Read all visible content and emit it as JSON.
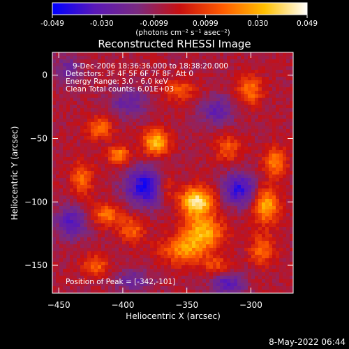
{
  "colorbar": {
    "ticks": [
      "-0.049",
      "-0.030",
      "-0.0099",
      "0.0099",
      "0.030",
      "0.049"
    ],
    "min": -0.049,
    "max": 0.049,
    "units": "(photons cm⁻² s⁻¹ asec⁻²)"
  },
  "chart_data": {
    "type": "heatmap",
    "title": "Reconstructed RHESSI Image",
    "xlabel": "Heliocentric X (arcsec)",
    "ylabel": "Heliocentric Y (arcsec)",
    "xlim": [
      -455,
      -267
    ],
    "ylim": [
      -172,
      18
    ],
    "xticks": [
      -450,
      -400,
      -350,
      -300
    ],
    "yticks": [
      0,
      -50,
      -100,
      -150
    ],
    "grid": false,
    "annotations": [
      "9-Dec-2006 18:36:36.000 to 18:38:20.000",
      "Detectors: 3F 4F 5F 6F 7F 8F, Att 0",
      "Energy Range: 3.0 - 6.0 keV",
      "Clean    Total counts: 6.01E+03"
    ],
    "peak_label": "Position of Peak = [-342,-101]",
    "peak": [
      -342,
      -101
    ],
    "colormap_colors": [
      "#0000ff",
      "#5a18b8",
      "#7a2a80",
      "#c81010",
      "#ff5a00",
      "#ffc000",
      "#ffffff"
    ],
    "sources": [
      {
        "x": -342,
        "y": -100,
        "sigma_x": 9,
        "sigma_y": 8,
        "value": 0.049
      },
      {
        "x": -337,
        "y": -124,
        "sigma_x": 11,
        "sigma_y": 9,
        "value": 0.036
      },
      {
        "x": -353,
        "y": -138,
        "sigma_x": 12,
        "sigma_y": 8,
        "value": 0.028
      },
      {
        "x": -374,
        "y": -53,
        "sigma_x": 7,
        "sigma_y": 7,
        "value": 0.04
      },
      {
        "x": -403,
        "y": -63,
        "sigma_x": 6,
        "sigma_y": 5,
        "value": 0.03
      },
      {
        "x": -418,
        "y": -42,
        "sigma_x": 7,
        "sigma_y": 6,
        "value": 0.025
      },
      {
        "x": -432,
        "y": -82,
        "sigma_x": 6,
        "sigma_y": 9,
        "value": 0.024
      },
      {
        "x": -413,
        "y": -110,
        "sigma_x": 8,
        "sigma_y": 6,
        "value": 0.027
      },
      {
        "x": -393,
        "y": -122,
        "sigma_x": 7,
        "sigma_y": 7,
        "value": 0.022
      },
      {
        "x": -421,
        "y": -150,
        "sigma_x": 7,
        "sigma_y": 6,
        "value": 0.023
      },
      {
        "x": -288,
        "y": -103,
        "sigma_x": 7,
        "sigma_y": 10,
        "value": 0.036
      },
      {
        "x": -281,
        "y": -68,
        "sigma_x": 6,
        "sigma_y": 8,
        "value": 0.03
      },
      {
        "x": -301,
        "y": -12,
        "sigma_x": 7,
        "sigma_y": 8,
        "value": 0.026
      },
      {
        "x": -291,
        "y": -138,
        "sigma_x": 7,
        "sigma_y": 8,
        "value": 0.024
      },
      {
        "x": -356,
        "y": -12,
        "sigma_x": 9,
        "sigma_y": 6,
        "value": 0.02
      },
      {
        "x": -318,
        "y": -58,
        "sigma_x": 7,
        "sigma_y": 7,
        "value": 0.021
      },
      {
        "x": -366,
        "y": -88,
        "sigma_x": 6,
        "sigma_y": 8,
        "value": 0.018
      },
      {
        "x": -328,
        "y": -150,
        "sigma_x": 8,
        "sigma_y": 5,
        "value": 0.017
      }
    ],
    "negative_regions": [
      {
        "x": -382,
        "y": -88,
        "sigma_x": 11,
        "sigma_y": 10,
        "value": -0.04
      },
      {
        "x": -309,
        "y": -90,
        "sigma_x": 9,
        "sigma_y": 9,
        "value": -0.034
      },
      {
        "x": -440,
        "y": -116,
        "sigma_x": 9,
        "sigma_y": 9,
        "value": -0.026
      },
      {
        "x": -318,
        "y": -165,
        "sigma_x": 9,
        "sigma_y": 6,
        "value": -0.026
      },
      {
        "x": -395,
        "y": -22,
        "sigma_x": 10,
        "sigma_y": 8,
        "value": -0.02
      },
      {
        "x": -327,
        "y": -28,
        "sigma_x": 9,
        "sigma_y": 8,
        "value": -0.022
      },
      {
        "x": -392,
        "y": -162,
        "sigma_x": 10,
        "sigma_y": 6,
        "value": -0.018
      },
      {
        "x": -443,
        "y": 5,
        "sigma_x": 8,
        "sigma_y": 8,
        "value": -0.016
      }
    ]
  },
  "timestamp": "8-May-2022 06:44"
}
